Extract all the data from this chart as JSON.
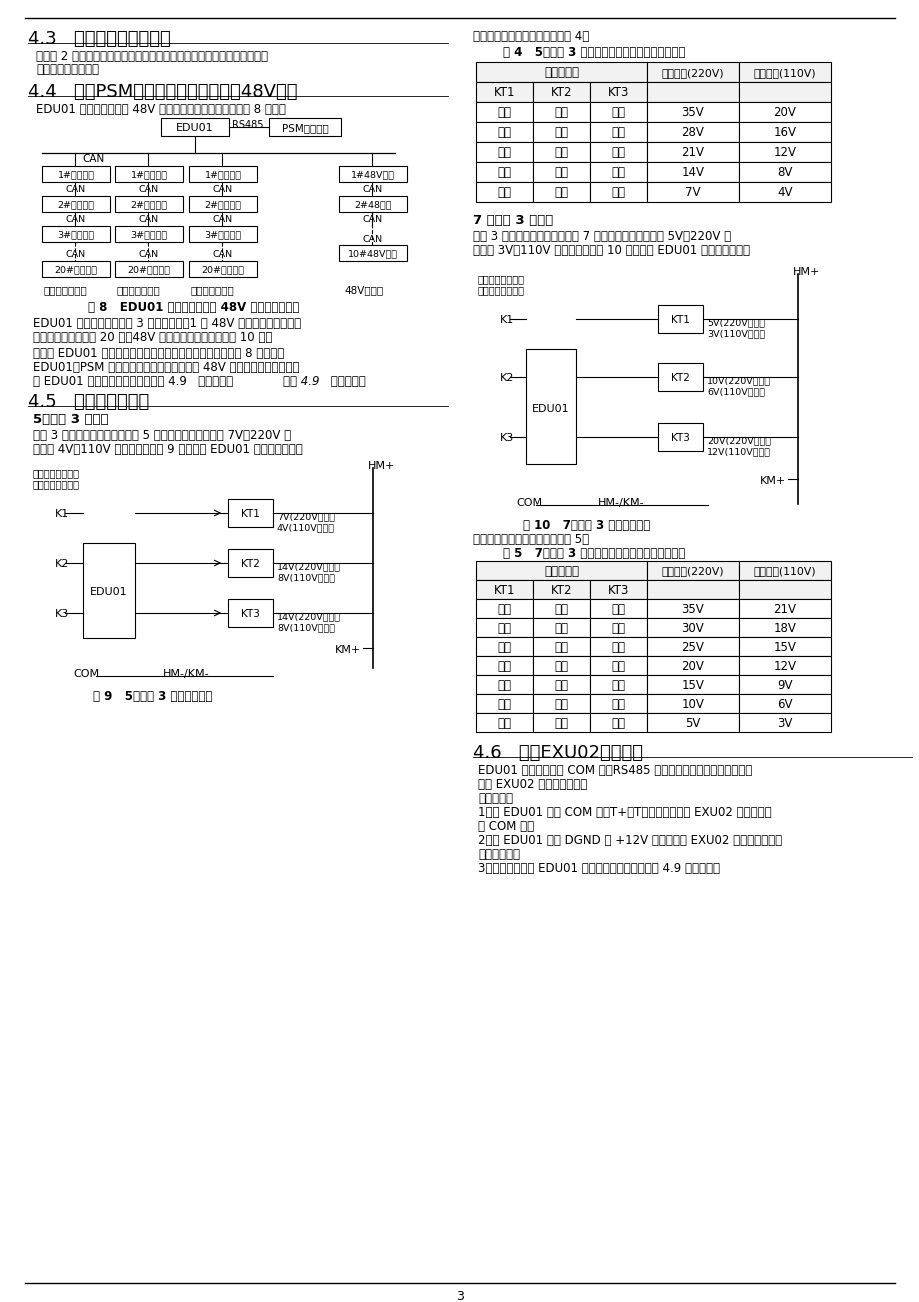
{
  "bg_color": "#ffffff",
  "section_43_title": "4.3   连接模拟量采集电缆",
  "section_43_body1": "根据表 2 说明连接合闸母线电压、控制母线电压、电池电压、电池电流、",
  "section_43_body2": "负载电流采集电缆。",
  "section_44_title": "4.4   连接PSM监控模块、充电模块和48V模块",
  "section_44_body1": "EDU01 和充电模块以及 48V 模块最大配置连接示意图如图 8 所示。",
  "fig8_caption": "图 8   EDU01 和充电模块以及 48V 模块连接示意图",
  "section_44_body2a": "EDU01 最多可以同时接入 3 组充电模块，1 组 48V 模块。每组最多连接",
  "section_44_body2b": "相同型号的充电模块 20 个。48V 模块最多连接相同型号的 10 个。",
  "section_44_body3a": "如果将 EDU01 作为协议转换器使用，则根据实际情况按照图 8 所示连接",
  "section_44_body3b": "EDU01、PSM 系列监控模块、充电模块以及 48V 模块。然后设置拨码，",
  "section_44_body3c": "使 EDU01 启动协议转换功能。参见 4.9   设置拨码。",
  "section_45_title": "4.5   连接硅链继电器",
  "section_45_sub1": "5级硅链 3 点控制",
  "section_45_body1a": "使用 3 个继电器控制硅链投切出 5 个降压等级，每级压降 7V（220V 系",
  "section_45_body1b": "统）或 4V（110V 系统）。根据图 9 所示连接 EDU01 和硅链继电器。",
  "fig9_caption": "图 9   5级硅链 3 点控制接线图",
  "section_right_top": "继电器状态和硅链压降关系见表 4。",
  "table4_title": "表 4   5级硅链 3 点控制继电器状态和硅链压降关系",
  "table4_data": [
    [
      "断开",
      "断开",
      "断开",
      "35V",
      "20V"
    ],
    [
      "闭合",
      "断开",
      "断开",
      "28V",
      "16V"
    ],
    [
      "断开",
      "闭合",
      "断开",
      "21V",
      "12V"
    ],
    [
      "闭合",
      "断开",
      "闭合",
      "14V",
      "8V"
    ],
    [
      "断开",
      "闭合",
      "闭合",
      "7V",
      "4V"
    ]
  ],
  "section_right_7level_sub": "7 级硅链 3 点控制",
  "section_right_7level_body1": "使用 3 个继电器控制硅链投切出 7 个降压等级，每级压降 5V（220V 系",
  "section_right_7level_body2": "统）或 3V（110V 系统）。根据图 10 所示连接 EDU01 和硅链继电器。",
  "fig10_caption": "图 10   7级硅链 3 点控制接线图",
  "section_right_7level_body3": "继电器状态和硅链压降关系见表 5。",
  "table5_title": "表 5   7级硅链 3 点控制继电器状态和硅链压降关系",
  "table5_data": [
    [
      "断开",
      "断开",
      "断开",
      "35V",
      "21V"
    ],
    [
      "闭合",
      "断开",
      "断开",
      "30V",
      "18V"
    ],
    [
      "断开",
      "闭合",
      "断开",
      "25V",
      "15V"
    ],
    [
      "闭合",
      "闭合",
      "断开",
      "20V",
      "12V"
    ],
    [
      "断开",
      "断开",
      "闭合",
      "15V",
      "9V"
    ],
    [
      "闭合",
      "断开",
      "闭合",
      "10V",
      "6V"
    ],
    [
      "断开",
      "闭合",
      "闭合",
      "5V",
      "3V"
    ]
  ],
  "section_46_title": "4.6   连接EXU02显示模块",
  "section_46_body1a": "EDU01 可以通过自身 COM 口（RS485 电平）将采集到的模拟量数据发",
  "section_46_body1b": "送到 EXU02 显示模块显示。",
  "section_46_body2": "接线方法：",
  "section_46_step1a": "1．将 EDU01 上的 COM 口（T+、T－端子）连接到 EXU02 显示模块上",
  "section_46_step1b": "的 COM 口。",
  "section_46_step2a": "2．将 EDU01 上的 DGND 和 +12V 端子连接到 EXU02 显示模块工作电",
  "section_46_step2b": "源输入端子。",
  "section_46_step3": "3．设置拨码，使 EDU01 禁止协议转换功能，参见 4.9 设置拨码。",
  "page_number": "3"
}
